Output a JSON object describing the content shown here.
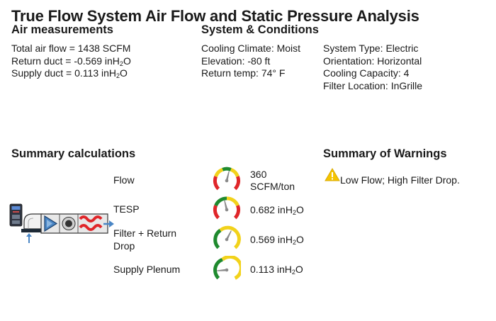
{
  "title": "True Flow System Air Flow and Static Pressure Analysis",
  "air_measurements": {
    "heading": "Air measurements",
    "total_air_flow": "Total air flow = 1438 SCFM",
    "return_duct_prefix": "Return duct = -0.569 inH",
    "supply_duct_prefix": "Supply duct = 0.113 inH",
    "h2o_sub": "2",
    "h2o_suffix": "O"
  },
  "system_conditions": {
    "heading": "System & Conditions",
    "cooling_climate": "Cooling Climate: Moist",
    "elevation": "Elevation: -80 ft",
    "return_temp": "Return temp: 74° F",
    "system_type": "System Type: Electric",
    "orientation": "Orientation: Horizontal",
    "cooling_capacity": "Cooling Capacity: 4",
    "filter_location": "Filter Location: InGrille"
  },
  "summary": {
    "heading": "Summary calculations",
    "rows": [
      {
        "label": "Flow",
        "value_line1": "360",
        "value_line2": "SCFM/ton",
        "needle": 0.55
      },
      {
        "label": "TESP",
        "value_prefix": "0.682 inH",
        "sub": "2",
        "suffix": "O",
        "needle": 0.45
      },
      {
        "label_line1": "Filter + Return",
        "label_line2": "Drop",
        "value_prefix": "0.569 inH",
        "sub": "2",
        "suffix": "O",
        "needle": 0.6
      },
      {
        "label": "Supply Plenum",
        "value_prefix": "0.113 inH",
        "sub": "2",
        "suffix": "O",
        "needle": 0.15
      }
    ]
  },
  "warnings": {
    "heading": "Summary of Warnings",
    "text": "Low Flow; High Filter Drop.",
    "icon": "warning-triangle-icon"
  },
  "colors": {
    "green": "#1f8a2e",
    "yellow": "#f2d21b",
    "red": "#e0262a",
    "warning": "#f5c400"
  }
}
